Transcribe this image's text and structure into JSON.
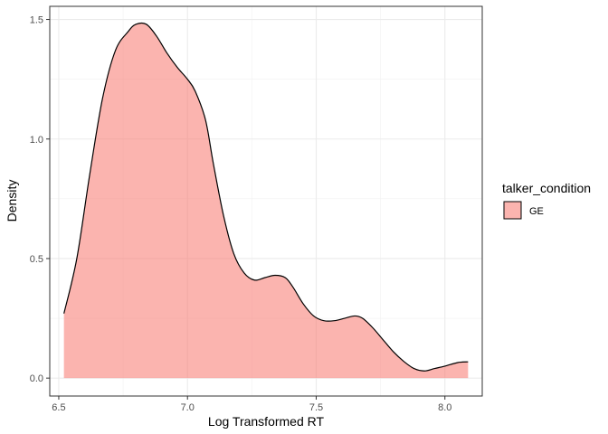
{
  "chart_data": {
    "type": "area",
    "subtype": "density",
    "xlabel": "Log Transformed RT",
    "ylabel": "Density",
    "xlim": [
      6.465,
      8.145
    ],
    "ylim": [
      -0.075,
      1.555
    ],
    "xticks": [
      6.5,
      7.0,
      7.5,
      8.0
    ],
    "xtick_labels": [
      "6.5",
      "7.0",
      "7.5",
      "8.0"
    ],
    "yticks": [
      0.0,
      0.5,
      1.0,
      1.5
    ],
    "ytick_labels": [
      "0.0",
      "0.5",
      "1.0",
      "1.5"
    ],
    "grid": true,
    "legend": {
      "title": "talker_condition",
      "position": "right",
      "entries": [
        {
          "label": "GE",
          "color": "#F8766D"
        }
      ]
    },
    "series": [
      {
        "name": "GE",
        "fill_color": "#F8766D",
        "fill_opacity": 0.55,
        "line_color": "#000000",
        "x": [
          6.52,
          6.57,
          6.62,
          6.67,
          6.72,
          6.77,
          6.8,
          6.84,
          6.88,
          6.92,
          6.96,
          7.0,
          7.03,
          7.07,
          7.1,
          7.14,
          7.18,
          7.22,
          7.26,
          7.3,
          7.34,
          7.38,
          7.41,
          7.45,
          7.49,
          7.53,
          7.57,
          7.61,
          7.65,
          7.68,
          7.72,
          7.76,
          7.8,
          7.84,
          7.88,
          7.92,
          7.96,
          8.0,
          8.05,
          8.09
        ],
        "y": [
          0.27,
          0.5,
          0.85,
          1.17,
          1.37,
          1.45,
          1.48,
          1.48,
          1.43,
          1.36,
          1.3,
          1.25,
          1.2,
          1.08,
          0.9,
          0.68,
          0.52,
          0.44,
          0.41,
          0.42,
          0.43,
          0.42,
          0.38,
          0.31,
          0.26,
          0.24,
          0.24,
          0.25,
          0.26,
          0.25,
          0.21,
          0.16,
          0.11,
          0.07,
          0.04,
          0.03,
          0.04,
          0.05,
          0.065,
          0.068
        ]
      }
    ]
  }
}
